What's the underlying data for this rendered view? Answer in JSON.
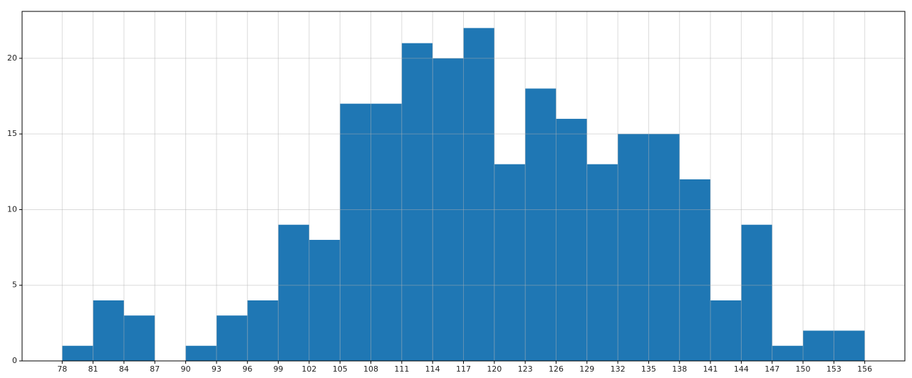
{
  "chart_data": {
    "type": "histogram",
    "bins": [
      78,
      81,
      84,
      87,
      90,
      93,
      96,
      99,
      102,
      105,
      108,
      111,
      114,
      117,
      120,
      123,
      126,
      129,
      132,
      135,
      138,
      141,
      144,
      147,
      150,
      153,
      156
    ],
    "counts": [
      1,
      4,
      3,
      0,
      1,
      3,
      4,
      9,
      8,
      17,
      17,
      21,
      20,
      22,
      13,
      18,
      16,
      13,
      15,
      15,
      12,
      4,
      9,
      1,
      2,
      2
    ],
    "color": "#1f77b4",
    "xlim": [
      74.1,
      159.9
    ],
    "xticks": [
      78,
      81,
      84,
      87,
      90,
      93,
      96,
      99,
      102,
      105,
      108,
      111,
      114,
      117,
      120,
      123,
      126,
      129,
      132,
      135,
      138,
      141,
      144,
      147,
      150,
      153,
      156
    ],
    "ylim": [
      0,
      23.1
    ],
    "yticks": [
      0,
      5,
      10,
      15,
      20
    ],
    "grid": true
  }
}
